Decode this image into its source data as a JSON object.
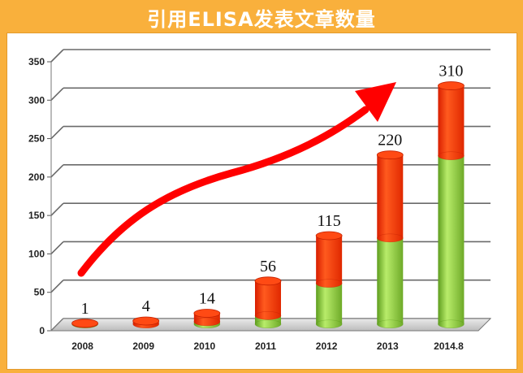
{
  "header": {
    "title": "引用ELISA发表文章数量"
  },
  "chart_data": {
    "type": "bar",
    "stacked": true,
    "categories": [
      "2008",
      "2009",
      "2010",
      "2011",
      "2012",
      "2013",
      "2014.8"
    ],
    "series": [
      {
        "values": [
          0.5,
          0,
          3,
          11,
          53,
          112,
          219
        ],
        "color": "#8dcf3e"
      },
      {
        "values": [
          0.5,
          4,
          11,
          45,
          62,
          108,
          91
        ],
        "color": "#ff3300"
      }
    ],
    "totals": [
      1,
      4,
      14,
      56,
      115,
      220,
      310
    ],
    "value_labels": [
      "1",
      "4",
      "14",
      "56",
      "115",
      "220",
      "310"
    ],
    "yticks": [
      0,
      50,
      100,
      150,
      200,
      250,
      300,
      350
    ],
    "ylim": [
      0,
      350
    ],
    "grid": true,
    "annotation": "red upward trend arrow"
  }
}
